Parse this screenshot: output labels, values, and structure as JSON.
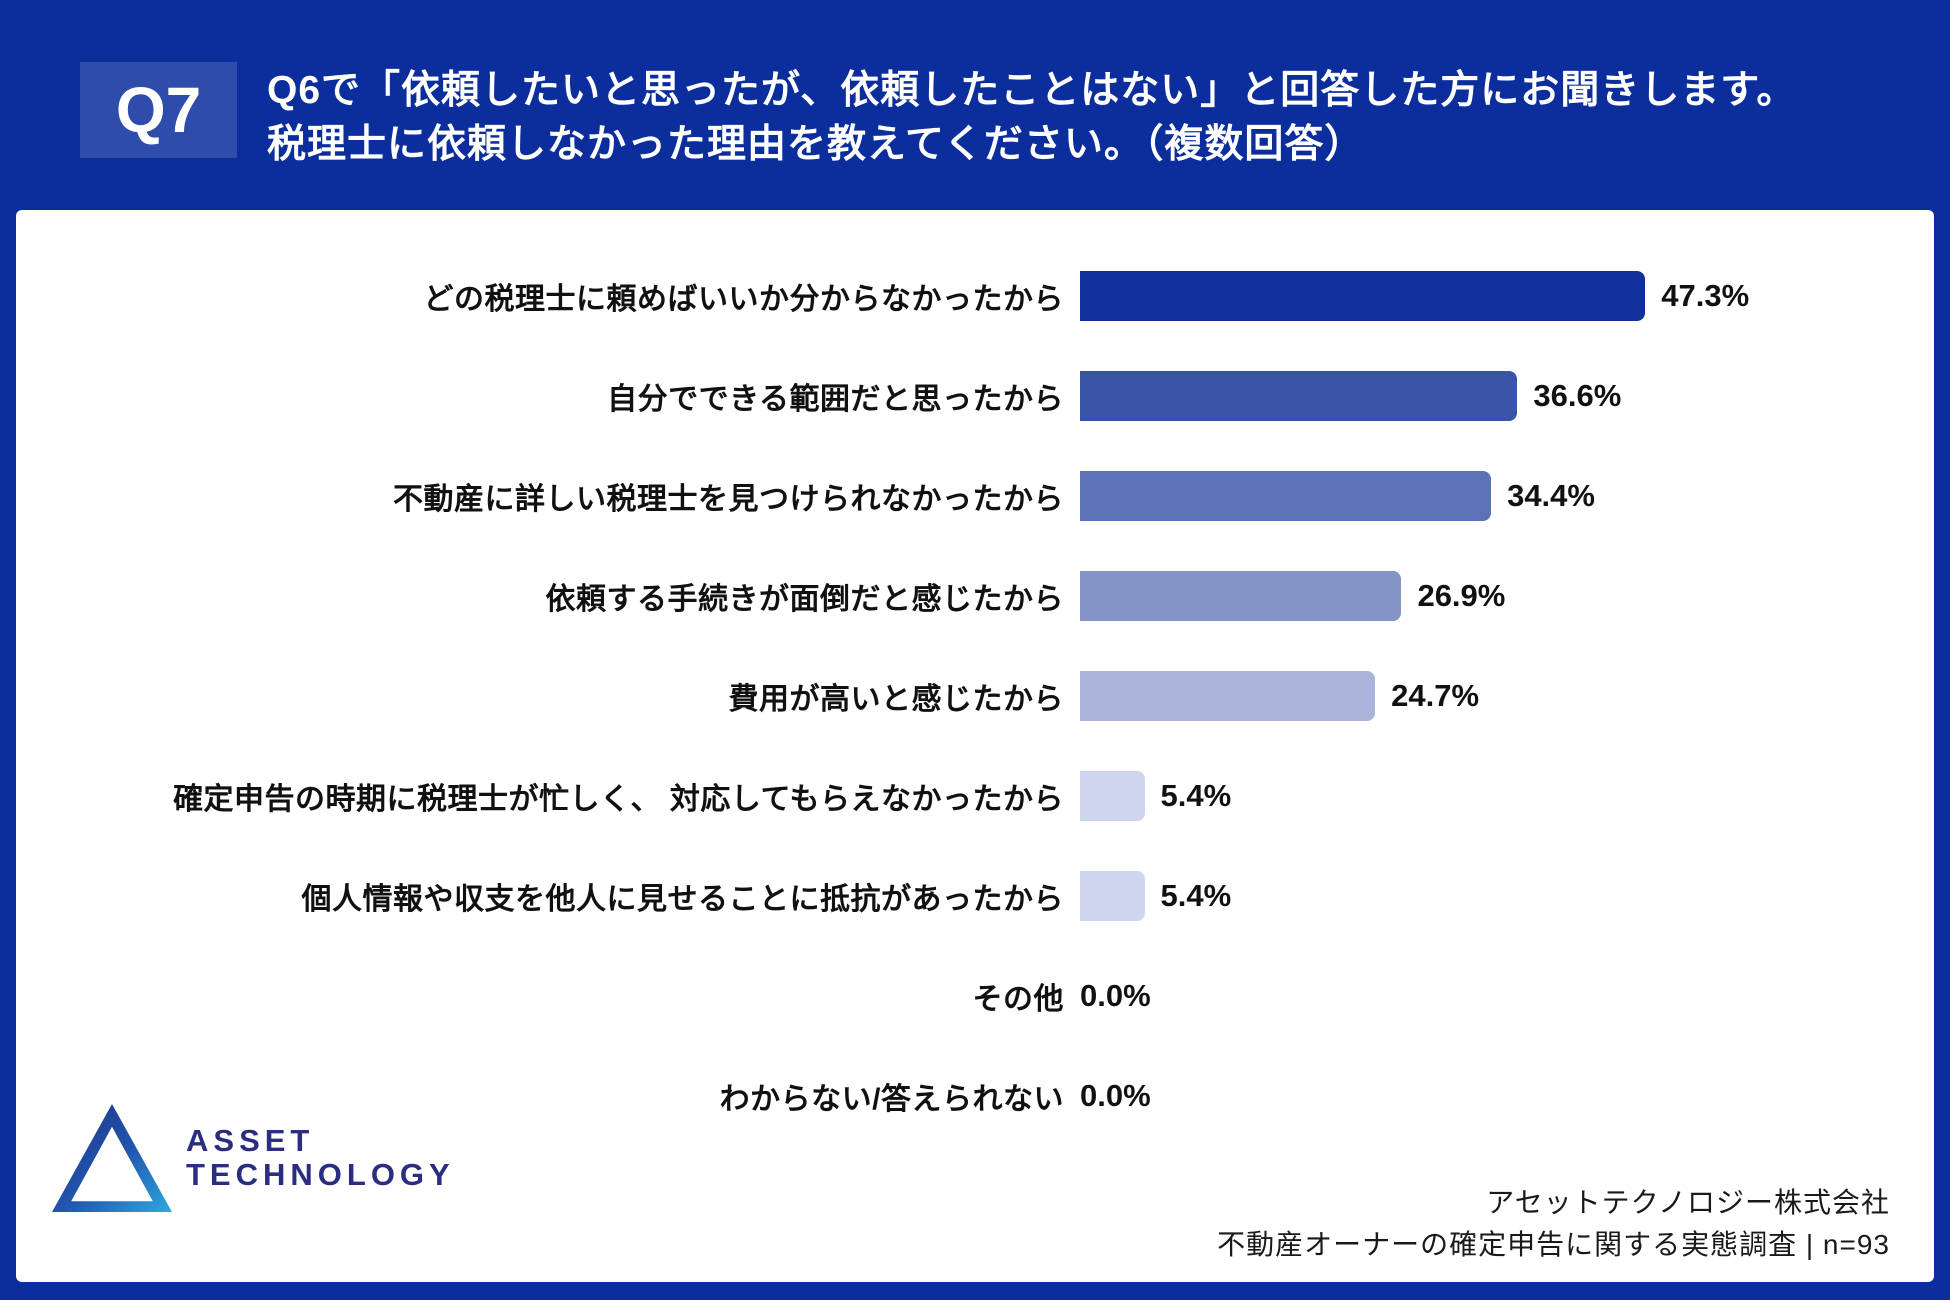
{
  "header": {
    "badge": "Q7",
    "title_line1": "Q6で「依頼したいと思ったが、依頼したことはない」と回答した方にお聞きします。",
    "title_line2": "税理士に依頼しなかった理由を教えてください。（複数回答）"
  },
  "chart_data": {
    "type": "bar",
    "orientation": "horizontal",
    "categories": [
      "どの税理士に頼めばいいか分からなかったから",
      "自分でできる範囲だと思ったから",
      "不動産に詳しい税理士を見つけられなかったから",
      "依頼する手続きが面倒だと感じたから",
      "費用が高いと感じたから",
      "確定申告の時期に税理士が忙しく、 対応してもらえなかったから",
      "個人情報や収支を他人に見せることに抵抗があったから",
      "その他",
      "わからない/答えられない"
    ],
    "values": [
      47.3,
      36.6,
      34.4,
      26.9,
      24.7,
      5.4,
      5.4,
      0.0,
      0.0
    ],
    "value_labels": [
      "47.3%",
      "36.6%",
      "34.4%",
      "26.9%",
      "24.7%",
      "5.4%",
      "5.4%",
      "0.0%",
      "0.0%"
    ],
    "bar_colors": [
      "#112F9B",
      "#3A55A8",
      "#5C71B6",
      "#8494C7",
      "#ABB5DB",
      "#CFD5EE",
      "#CFD5EE",
      "#CFD5EE",
      "#CFD5EE"
    ],
    "xlim": [
      0,
      50
    ],
    "grid": false,
    "legend": "none",
    "title": "",
    "xlabel": "",
    "ylabel": ""
  },
  "logo": {
    "line1": "ASSET",
    "line2": "TECHNOLOGY",
    "text_color": "#2B2D80",
    "triangle_dark": "#1B2F80",
    "triangle_mid": "#2257B0",
    "triangle_light": "#2FA9E0"
  },
  "footer": {
    "line1": "アセットテクノロジー株式会社",
    "line2": "不動産オーナーの確定申告に関する実態調査 | n=93"
  },
  "colors": {
    "background": "#0C2E9D",
    "badge": "#2E4CA9",
    "card": "#FFFFFF",
    "text": "#111111"
  }
}
